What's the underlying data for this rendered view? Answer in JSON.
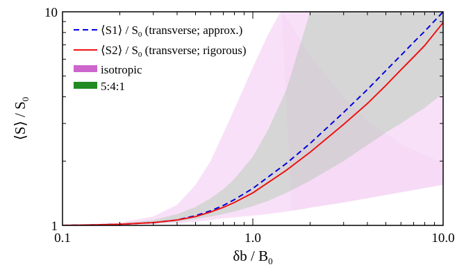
{
  "chart_data": {
    "type": "line",
    "title": "",
    "xscale": "log",
    "yscale": "log",
    "xlim": [
      0.1,
      10.0
    ],
    "ylim": [
      1,
      10
    ],
    "grid": false,
    "legend_placement": "top-left",
    "xlabel": {
      "main": "δb / B",
      "sub": "0"
    },
    "ylabel": {
      "main": "⟨S⟩ / S",
      "sub": "0"
    },
    "x_tick_labels": [
      {
        "value": 0.1,
        "label": "0.1"
      },
      {
        "value": 1.0,
        "label": "1.0"
      },
      {
        "value": 10.0,
        "label": "10.0"
      }
    ],
    "y_tick_labels": [
      {
        "value": 1,
        "label": "1"
      },
      {
        "value": 10,
        "label": "10"
      }
    ],
    "series": [
      {
        "name": "⟨S1⟩ / S0 (transverse; approx.)",
        "legend_main": "⟨S1⟩ / S",
        "legend_sub": "0",
        "legend_rest": " (transverse; approx.)",
        "color": "#0000dd",
        "style": "dashed",
        "x": [
          0.1,
          0.15,
          0.2,
          0.3,
          0.4,
          0.5,
          0.6,
          0.7,
          0.8,
          1.0,
          1.5,
          2.0,
          3.0,
          4.0,
          5.0,
          6.0,
          7.0,
          8.0,
          10.0
        ],
        "y": [
          1.0,
          1.006,
          1.012,
          1.03,
          1.06,
          1.11,
          1.17,
          1.24,
          1.32,
          1.49,
          1.95,
          2.42,
          3.38,
          4.33,
          5.3,
          6.25,
          7.2,
          8.1,
          10.0
        ]
      },
      {
        "name": "⟨S2⟩ / S0 (transverse; rigorous)",
        "legend_main": "⟨S2⟩ / S",
        "legend_sub": "0",
        "legend_rest": " (transverse; rigorous)",
        "color": "#ee1111",
        "style": "solid",
        "x": [
          0.1,
          0.15,
          0.2,
          0.3,
          0.4,
          0.5,
          0.6,
          0.7,
          0.8,
          1.0,
          1.5,
          2.0,
          3.0,
          4.0,
          5.0,
          6.0,
          7.0,
          8.0,
          10.0
        ],
        "y": [
          1.0,
          1.006,
          1.012,
          1.03,
          1.06,
          1.1,
          1.155,
          1.215,
          1.28,
          1.42,
          1.81,
          2.2,
          2.97,
          3.72,
          4.52,
          5.35,
          6.15,
          6.95,
          8.9
        ]
      }
    ],
    "bands": [
      {
        "name": "isotropic",
        "color": "#dd77dd",
        "opacity": 0.22,
        "x": [
          0.1,
          0.2,
          0.3,
          0.4,
          0.5,
          0.6,
          0.7,
          0.8,
          1.0,
          1.2,
          1.4,
          1.6,
          1.8,
          2.0,
          3.0,
          4.0,
          6.0,
          10.0
        ],
        "lower": [
          1.0,
          1.005,
          1.015,
          1.025,
          1.04,
          1.06,
          1.08,
          1.09,
          1.11,
          1.13,
          1.15,
          1.17,
          1.19,
          1.21,
          1.28,
          1.34,
          1.43,
          1.55
        ],
        "upper": [
          1.0,
          1.03,
          1.1,
          1.25,
          1.55,
          2.0,
          2.7,
          3.5,
          5.5,
          7.8,
          10.0,
          10.0,
          10.0,
          10.0,
          10.0,
          10.0,
          10.0,
          10.0
        ],
        "lower_right_edge": [
          {
            "x": 10.0,
            "y": 1.55
          }
        ],
        "outer_right_edge": [
          {
            "x": 1.42,
            "y": 10.0
          },
          {
            "x": 1.6,
            "y": 8.6
          },
          {
            "x": 2.0,
            "y": 6.2
          },
          {
            "x": 3.0,
            "y": 4.0
          },
          {
            "x": 4.0,
            "y": 3.1
          },
          {
            "x": 6.0,
            "y": 2.4
          },
          {
            "x": 10.0,
            "y": 1.95
          }
        ]
      },
      {
        "name": "5:4:1",
        "color": "#55aa55",
        "opacity": 0.2,
        "x": [
          0.1,
          0.2,
          0.3,
          0.4,
          0.5,
          0.6,
          0.7,
          0.8,
          1.0,
          1.2,
          1.5,
          2.0,
          2.5,
          3.0,
          4.0,
          5.0,
          6.0,
          8.0,
          10.0
        ],
        "lower": [
          1.0,
          1.01,
          1.02,
          1.04,
          1.07,
          1.1,
          1.13,
          1.16,
          1.23,
          1.3,
          1.42,
          1.62,
          1.82,
          2.0,
          2.38,
          2.72,
          3.0,
          3.55,
          4.15
        ],
        "upper": [
          1.0,
          1.02,
          1.06,
          1.13,
          1.22,
          1.34,
          1.48,
          1.65,
          2.1,
          2.8,
          4.3,
          10.0,
          10.0,
          10.0,
          10.0,
          10.0,
          10.0,
          10.0,
          10.0
        ]
      }
    ],
    "legend": [
      {
        "type": "line",
        "series": 0
      },
      {
        "type": "line",
        "series": 1
      },
      {
        "type": "patch",
        "label": "isotropic",
        "color": "#cc66cc"
      },
      {
        "type": "patch",
        "label": "5:4:1",
        "color": "#228b22"
      }
    ]
  }
}
